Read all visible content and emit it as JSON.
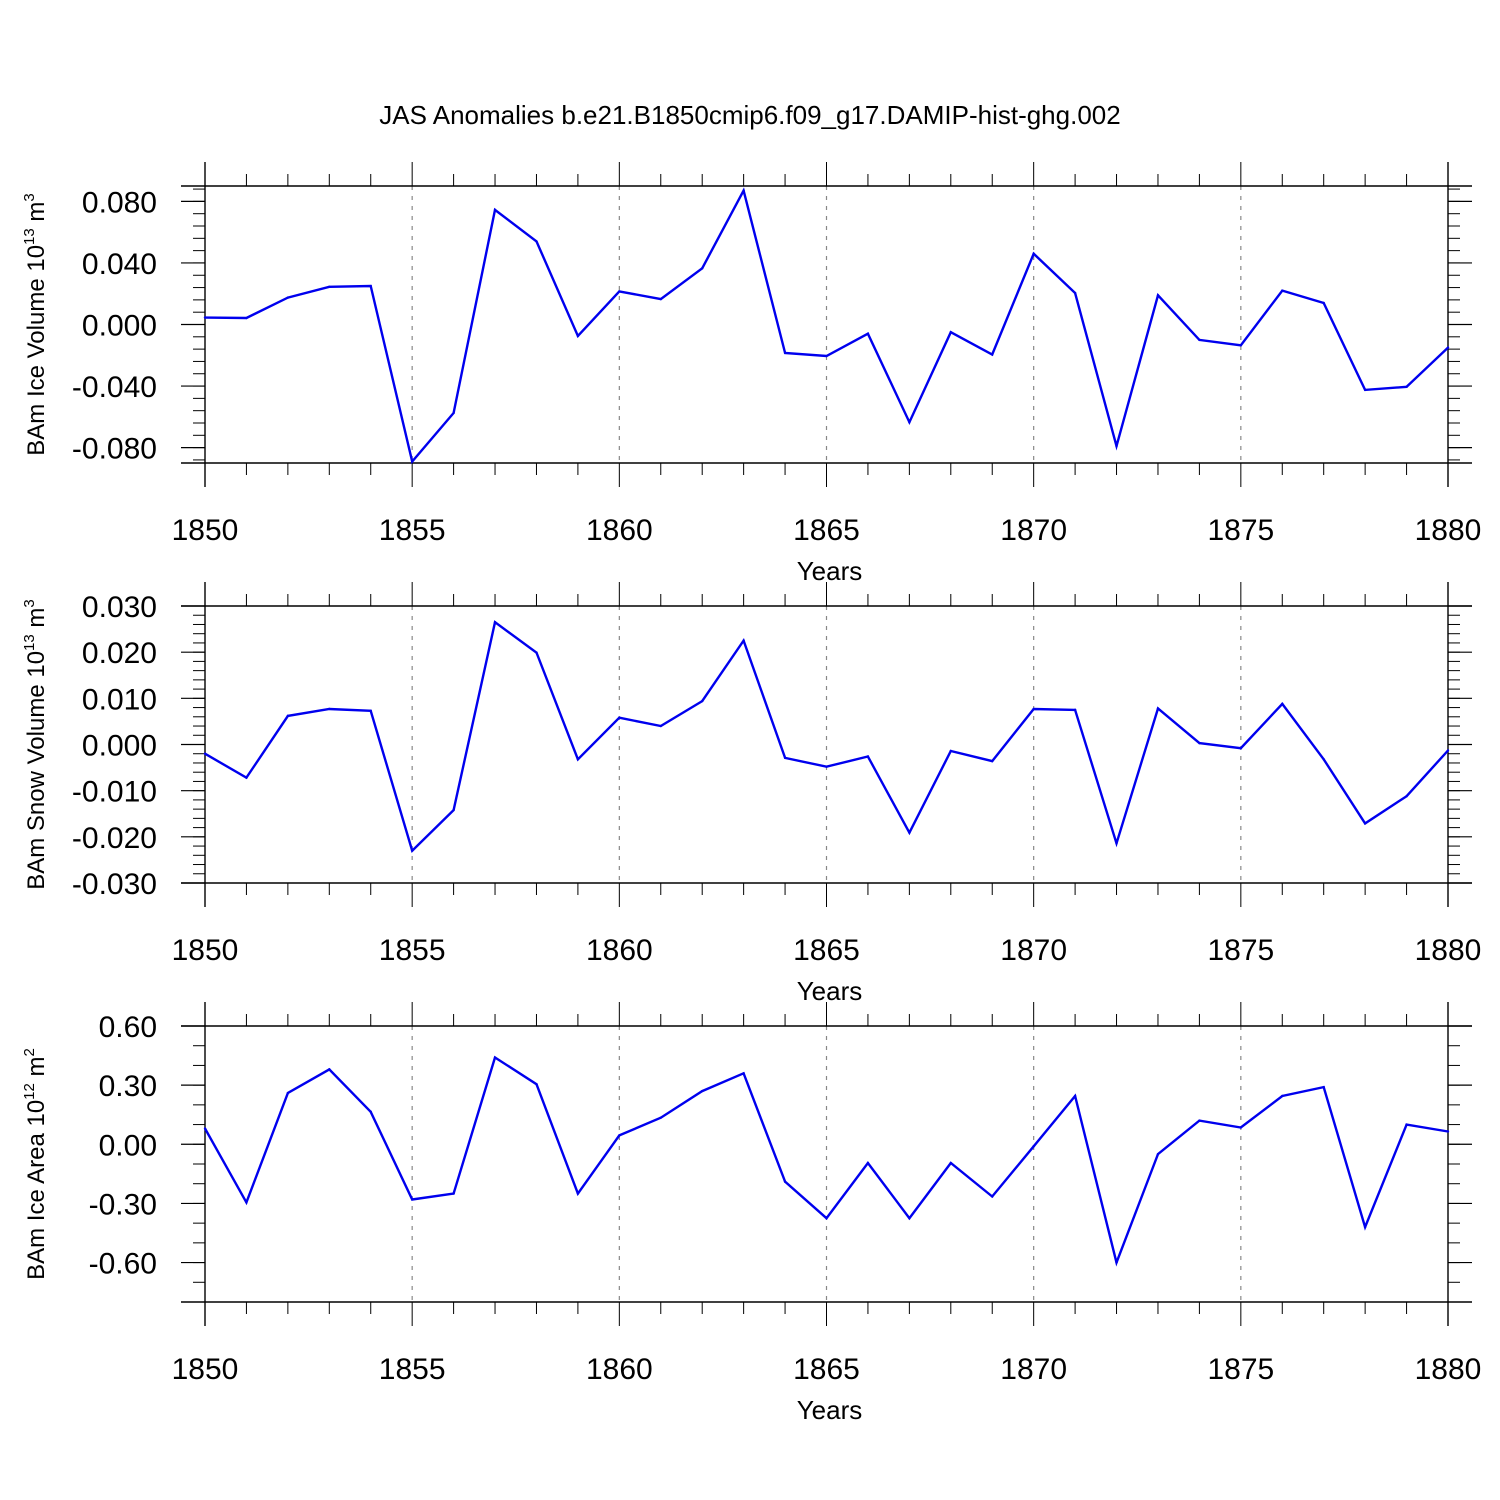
{
  "title": "JAS Anomalies b.e21.B1850cmip6.f09_g17.DAMIP-hist-ghg.002",
  "series_color": "#0000ee",
  "chart_data": [
    {
      "type": "line",
      "xlabel": "Years",
      "ylabel": {
        "main": "BAm Ice Volume 10",
        "exp": "13",
        "unit": " m",
        "unit_exp": "3"
      },
      "xlim": [
        1850,
        1880
      ],
      "ylim": [
        -0.09,
        0.09
      ],
      "x_ticks": [
        "1850",
        "1855",
        "1860",
        "1865",
        "1870",
        "1875",
        "1880"
      ],
      "y_ticks": [
        -0.08,
        -0.04,
        0.0,
        0.04,
        0.08
      ],
      "y_tick_labels": [
        "-0.080",
        "-0.040",
        "0.000",
        "0.040",
        "0.080"
      ],
      "y_minor_step": 0.008,
      "x": [
        1850,
        1851,
        1852,
        1853,
        1854,
        1855,
        1856,
        1857,
        1858,
        1859,
        1860,
        1861,
        1862,
        1863,
        1864,
        1865,
        1866,
        1867,
        1868,
        1869,
        1870,
        1871,
        1872,
        1873,
        1874,
        1875,
        1876,
        1877,
        1878,
        1879,
        1880
      ],
      "values": [
        0.0045,
        0.0042,
        0.0175,
        0.0245,
        0.025,
        -0.089,
        -0.0575,
        0.0745,
        0.054,
        -0.0075,
        0.0215,
        0.0165,
        0.0365,
        0.087,
        -0.0185,
        -0.0205,
        -0.006,
        -0.0635,
        -0.005,
        -0.0195,
        0.046,
        0.0205,
        -0.079,
        0.019,
        -0.01,
        -0.0135,
        0.022,
        0.014,
        -0.0425,
        -0.0405,
        -0.015
      ]
    },
    {
      "type": "line",
      "xlabel": "Years",
      "ylabel": {
        "main": "BAm Snow Volume 10",
        "exp": "13",
        "unit": " m",
        "unit_exp": "3"
      },
      "xlim": [
        1850,
        1880
      ],
      "ylim": [
        -0.03,
        0.03
      ],
      "x_ticks": [
        "1850",
        "1855",
        "1860",
        "1865",
        "1870",
        "1875",
        "1880"
      ],
      "y_ticks": [
        -0.03,
        -0.02,
        -0.01,
        0.0,
        0.01,
        0.02,
        0.03
      ],
      "y_tick_labels": [
        "-0.030",
        "-0.020",
        "-0.010",
        "0.000",
        "0.010",
        "0.020",
        "0.030"
      ],
      "y_minor_step": 0.002,
      "x": [
        1850,
        1851,
        1852,
        1853,
        1854,
        1855,
        1856,
        1857,
        1858,
        1859,
        1860,
        1861,
        1862,
        1863,
        1864,
        1865,
        1866,
        1867,
        1868,
        1869,
        1870,
        1871,
        1872,
        1873,
        1874,
        1875,
        1876,
        1877,
        1878,
        1879,
        1880
      ],
      "values": [
        -0.002,
        -0.0072,
        0.0062,
        0.0077,
        0.0073,
        -0.023,
        -0.0142,
        0.0265,
        0.0199,
        -0.0032,
        0.0058,
        0.004,
        0.0094,
        0.0225,
        -0.0029,
        -0.0048,
        -0.0026,
        -0.0191,
        -0.0014,
        -0.0036,
        0.0077,
        0.0075,
        -0.0214,
        0.0078,
        0.0003,
        -0.0008,
        0.0088,
        -0.0032,
        -0.0171,
        -0.0112,
        -0.0013
      ]
    },
    {
      "type": "line",
      "xlabel": "Years",
      "ylabel": {
        "main": "BAm Ice Area 10",
        "exp": "12",
        "unit": " m",
        "unit_exp": "2"
      },
      "xlim": [
        1850,
        1880
      ],
      "ylim": [
        -0.8,
        0.6
      ],
      "x_ticks": [
        "1850",
        "1855",
        "1860",
        "1865",
        "1870",
        "1875",
        "1880"
      ],
      "y_ticks": [
        -0.6,
        -0.3,
        0.0,
        0.3,
        0.6
      ],
      "y_tick_labels": [
        "-0.60",
        "-0.30",
        "0.00",
        "0.30",
        "0.60"
      ],
      "y_minor_step": 0.1,
      "x": [
        1850,
        1851,
        1852,
        1853,
        1854,
        1855,
        1856,
        1857,
        1858,
        1859,
        1860,
        1861,
        1862,
        1863,
        1864,
        1865,
        1866,
        1867,
        1868,
        1869,
        1870,
        1871,
        1872,
        1873,
        1874,
        1875,
        1876,
        1877,
        1878,
        1879,
        1880
      ],
      "values": [
        0.08,
        -0.295,
        0.26,
        0.38,
        0.165,
        -0.28,
        -0.25,
        0.44,
        0.305,
        -0.25,
        0.045,
        0.135,
        0.27,
        0.36,
        -0.19,
        -0.375,
        -0.095,
        -0.375,
        -0.095,
        -0.265,
        -0.01,
        0.245,
        -0.6,
        -0.05,
        0.12,
        0.085,
        0.245,
        0.29,
        -0.42,
        0.1,
        0.065
      ]
    }
  ]
}
